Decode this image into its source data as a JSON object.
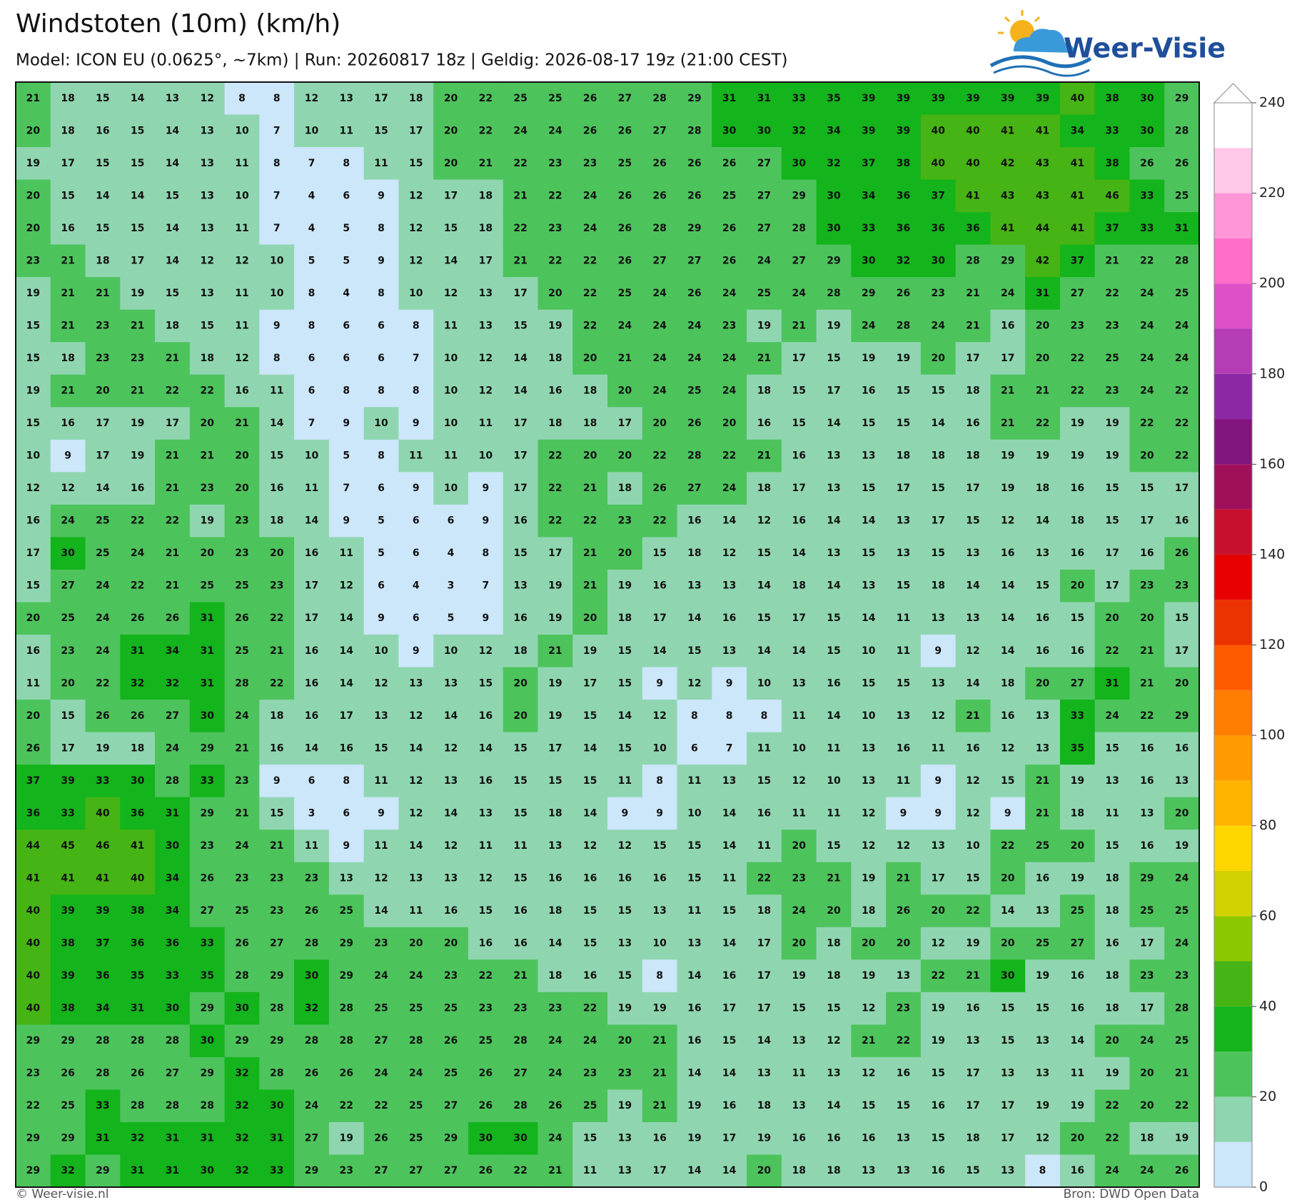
{
  "chart_data": {
    "type": "grid_heatmap",
    "title": "Windstoten (10m) (km/h)",
    "subtitle": "Model: ICON EU (0.0625°, ~7km)  |  Run: 20260817 18z  |  Geldig: 2026-08-17 19z (21:00 CEST)",
    "brand": "Weer-Visie",
    "footer_left": "© Weer-visie.nl",
    "footer_right": "Bron: DWD Open Data",
    "values": [
      [
        21,
        18,
        15,
        14,
        13,
        12,
        8,
        8,
        12,
        13,
        17,
        18,
        20,
        22,
        25,
        25,
        26,
        27,
        28,
        29,
        31,
        31,
        33,
        35,
        39,
        39,
        39,
        39,
        39,
        39,
        40,
        38,
        30,
        29
      ],
      [
        20,
        18,
        16,
        15,
        14,
        13,
        10,
        7,
        10,
        11,
        15,
        17,
        20,
        22,
        24,
        24,
        26,
        26,
        27,
        28,
        30,
        30,
        32,
        34,
        39,
        39,
        40,
        40,
        41,
        41,
        34,
        33,
        30,
        28
      ],
      [
        19,
        17,
        15,
        15,
        14,
        13,
        11,
        8,
        7,
        8,
        11,
        15,
        20,
        21,
        22,
        23,
        23,
        25,
        26,
        26,
        26,
        27,
        30,
        32,
        37,
        38,
        40,
        40,
        42,
        43,
        41,
        38,
        26,
        26
      ],
      [
        20,
        15,
        14,
        14,
        15,
        13,
        10,
        7,
        4,
        6,
        9,
        12,
        17,
        18,
        21,
        22,
        24,
        26,
        26,
        26,
        25,
        27,
        29,
        30,
        34,
        36,
        37,
        41,
        43,
        43,
        41,
        46,
        33,
        25
      ],
      [
        20,
        16,
        15,
        15,
        14,
        13,
        11,
        7,
        4,
        5,
        8,
        12,
        15,
        18,
        22,
        23,
        24,
        26,
        28,
        29,
        26,
        27,
        28,
        30,
        33,
        36,
        36,
        36,
        41,
        44,
        41,
        37,
        33,
        31
      ],
      [
        23,
        21,
        18,
        17,
        14,
        12,
        12,
        10,
        5,
        5,
        9,
        12,
        14,
        17,
        21,
        22,
        22,
        26,
        27,
        27,
        26,
        24,
        27,
        29,
        30,
        32,
        30,
        28,
        29,
        42,
        37,
        21,
        22,
        28
      ],
      [
        19,
        21,
        21,
        19,
        15,
        13,
        11,
        10,
        8,
        4,
        8,
        10,
        12,
        13,
        17,
        20,
        22,
        25,
        24,
        26,
        24,
        25,
        24,
        28,
        29,
        26,
        23,
        21,
        24,
        31,
        27,
        22,
        24,
        25
      ],
      [
        15,
        21,
        23,
        21,
        18,
        15,
        11,
        9,
        8,
        6,
        6,
        8,
        11,
        13,
        15,
        19,
        22,
        24,
        24,
        24,
        23,
        19,
        21,
        19,
        24,
        28,
        24,
        21,
        16,
        20,
        23,
        23,
        24,
        24
      ],
      [
        15,
        18,
        23,
        23,
        21,
        18,
        12,
        8,
        6,
        6,
        6,
        7,
        10,
        12,
        14,
        18,
        20,
        21,
        24,
        24,
        24,
        21,
        17,
        15,
        19,
        19,
        20,
        17,
        17,
        20,
        22,
        25,
        24,
        24
      ],
      [
        19,
        21,
        20,
        21,
        22,
        22,
        16,
        11,
        6,
        8,
        8,
        8,
        10,
        12,
        14,
        16,
        18,
        20,
        24,
        25,
        24,
        18,
        15,
        17,
        16,
        15,
        15,
        18,
        21,
        21,
        22,
        23,
        24,
        22
      ],
      [
        15,
        16,
        17,
        19,
        17,
        20,
        21,
        14,
        7,
        9,
        10,
        9,
        10,
        11,
        17,
        18,
        18,
        17,
        20,
        26,
        20,
        16,
        15,
        14,
        15,
        15,
        14,
        16,
        21,
        22,
        19,
        19,
        22,
        22
      ],
      [
        10,
        9,
        17,
        19,
        21,
        21,
        20,
        15,
        10,
        5,
        8,
        11,
        11,
        10,
        17,
        22,
        20,
        20,
        22,
        28,
        22,
        21,
        16,
        13,
        13,
        18,
        18,
        18,
        19,
        19,
        19,
        19,
        20,
        22
      ],
      [
        12,
        12,
        14,
        16,
        21,
        23,
        20,
        16,
        11,
        7,
        6,
        9,
        10,
        9,
        17,
        22,
        21,
        18,
        26,
        27,
        24,
        18,
        17,
        13,
        15,
        17,
        15,
        17,
        19,
        18,
        16,
        15,
        15,
        17
      ],
      [
        16,
        24,
        25,
        22,
        22,
        19,
        23,
        18,
        14,
        9,
        5,
        6,
        6,
        9,
        16,
        22,
        22,
        23,
        22,
        16,
        14,
        12,
        16,
        14,
        14,
        13,
        17,
        15,
        12,
        14,
        18,
        15,
        17,
        16
      ],
      [
        17,
        30,
        25,
        24,
        21,
        20,
        23,
        20,
        16,
        11,
        5,
        6,
        4,
        8,
        15,
        17,
        21,
        20,
        15,
        18,
        12,
        15,
        14,
        13,
        15,
        13,
        15,
        13,
        16,
        13,
        16,
        17,
        16,
        26
      ],
      [
        15,
        27,
        24,
        22,
        21,
        25,
        25,
        23,
        17,
        12,
        6,
        4,
        3,
        7,
        13,
        19,
        21,
        19,
        16,
        13,
        13,
        14,
        18,
        14,
        13,
        15,
        18,
        14,
        14,
        15,
        20,
        17,
        23,
        23
      ],
      [
        20,
        25,
        24,
        26,
        26,
        31,
        26,
        22,
        17,
        14,
        9,
        6,
        5,
        9,
        16,
        19,
        20,
        18,
        17,
        14,
        16,
        15,
        17,
        15,
        14,
        11,
        13,
        13,
        14,
        16,
        15,
        20,
        20,
        15
      ],
      [
        16,
        23,
        24,
        31,
        34,
        31,
        25,
        21,
        16,
        14,
        10,
        9,
        10,
        12,
        18,
        21,
        19,
        15,
        14,
        15,
        13,
        14,
        14,
        15,
        10,
        11,
        9,
        12,
        14,
        16,
        16,
        22,
        21,
        17
      ],
      [
        11,
        20,
        22,
        32,
        32,
        31,
        28,
        22,
        16,
        14,
        12,
        13,
        13,
        15,
        20,
        19,
        17,
        15,
        9,
        12,
        9,
        10,
        13,
        16,
        15,
        15,
        13,
        14,
        18,
        20,
        27,
        31,
        21,
        20
      ],
      [
        20,
        15,
        26,
        26,
        27,
        30,
        24,
        18,
        16,
        17,
        13,
        12,
        14,
        16,
        20,
        19,
        15,
        14,
        12,
        8,
        8,
        8,
        11,
        14,
        10,
        13,
        12,
        21,
        16,
        13,
        33,
        24,
        22,
        29
      ],
      [
        26,
        17,
        19,
        18,
        24,
        29,
        21,
        16,
        14,
        16,
        15,
        14,
        12,
        14,
        15,
        17,
        14,
        15,
        10,
        6,
        7,
        11,
        10,
        11,
        13,
        16,
        11,
        16,
        12,
        13,
        35,
        15,
        16,
        16
      ],
      [
        37,
        39,
        33,
        30,
        28,
        33,
        23,
        9,
        6,
        8,
        11,
        12,
        13,
        16,
        15,
        15,
        15,
        11,
        8,
        11,
        13,
        15,
        12,
        10,
        13,
        11,
        9,
        12,
        15,
        21,
        19,
        13,
        16,
        13
      ],
      [
        36,
        33,
        40,
        36,
        31,
        29,
        21,
        15,
        3,
        6,
        9,
        12,
        14,
        13,
        15,
        18,
        14,
        9,
        9,
        10,
        14,
        16,
        11,
        11,
        12,
        9,
        9,
        12,
        9,
        21,
        18,
        11,
        13,
        20
      ],
      [
        44,
        45,
        46,
        41,
        30,
        23,
        24,
        21,
        11,
        9,
        11,
        14,
        12,
        11,
        11,
        13,
        12,
        12,
        15,
        15,
        14,
        11,
        20,
        15,
        12,
        12,
        13,
        10,
        22,
        25,
        20,
        15,
        16,
        19
      ],
      [
        41,
        41,
        41,
        40,
        34,
        26,
        23,
        23,
        23,
        13,
        12,
        13,
        13,
        12,
        15,
        16,
        16,
        16,
        16,
        15,
        11,
        22,
        23,
        21,
        19,
        21,
        17,
        15,
        20,
        16,
        19,
        18,
        29,
        24
      ],
      [
        40,
        39,
        39,
        38,
        34,
        27,
        25,
        23,
        26,
        25,
        14,
        11,
        16,
        15,
        16,
        18,
        15,
        15,
        13,
        11,
        15,
        18,
        24,
        20,
        18,
        26,
        20,
        22,
        14,
        13,
        25,
        18,
        25,
        25
      ],
      [
        40,
        38,
        37,
        36,
        36,
        33,
        26,
        27,
        28,
        29,
        23,
        20,
        20,
        16,
        16,
        14,
        15,
        13,
        10,
        13,
        14,
        17,
        20,
        18,
        20,
        20,
        12,
        19,
        20,
        25,
        27,
        16,
        17,
        24
      ],
      [
        40,
        39,
        36,
        35,
        33,
        35,
        28,
        29,
        30,
        29,
        24,
        24,
        23,
        22,
        21,
        18,
        16,
        15,
        8,
        14,
        16,
        17,
        19,
        18,
        19,
        13,
        22,
        21,
        30,
        19,
        16,
        18,
        23,
        23
      ],
      [
        40,
        38,
        34,
        31,
        30,
        29,
        30,
        28,
        32,
        28,
        25,
        25,
        25,
        23,
        23,
        23,
        22,
        19,
        19,
        16,
        17,
        17,
        15,
        15,
        12,
        23,
        19,
        16,
        15,
        15,
        16,
        18,
        17,
        28
      ],
      [
        29,
        29,
        28,
        28,
        28,
        30,
        29,
        29,
        28,
        28,
        27,
        28,
        26,
        25,
        28,
        24,
        24,
        20,
        21,
        16,
        15,
        14,
        13,
        12,
        21,
        22,
        19,
        13,
        15,
        13,
        14,
        20,
        24,
        25
      ],
      [
        23,
        26,
        28,
        26,
        27,
        29,
        32,
        28,
        26,
        26,
        24,
        24,
        25,
        26,
        27,
        24,
        23,
        23,
        21,
        14,
        14,
        13,
        11,
        13,
        12,
        16,
        15,
        17,
        13,
        13,
        11,
        19,
        20,
        21
      ],
      [
        22,
        25,
        33,
        28,
        28,
        28,
        32,
        30,
        24,
        22,
        22,
        25,
        27,
        26,
        28,
        26,
        25,
        19,
        21,
        19,
        16,
        18,
        13,
        14,
        15,
        15,
        16,
        17,
        17,
        19,
        19,
        22,
        20,
        22
      ],
      [
        29,
        29,
        31,
        32,
        31,
        31,
        32,
        31,
        27,
        19,
        26,
        25,
        29,
        30,
        30,
        24,
        15,
        13,
        16,
        19,
        17,
        19,
        16,
        16,
        16,
        13,
        15,
        18,
        17,
        12,
        20,
        22,
        18,
        19
      ],
      [
        29,
        32,
        29,
        31,
        31,
        30,
        32,
        33,
        29,
        23,
        27,
        27,
        27,
        26,
        22,
        21,
        11,
        13,
        17,
        14,
        14,
        20,
        18,
        18,
        13,
        13,
        16,
        15,
        13,
        8,
        16,
        24,
        24,
        26
      ]
    ],
    "colorbar": {
      "lim": [
        0,
        240
      ],
      "ticks": [
        0,
        20,
        40,
        60,
        80,
        100,
        120,
        140,
        160,
        180,
        200,
        220,
        240
      ],
      "bounds": [
        0,
        10,
        20,
        30,
        40,
        50,
        60,
        70,
        80,
        90,
        100,
        110,
        120,
        130,
        140,
        150,
        160,
        170,
        180,
        190,
        200,
        210,
        220,
        230,
        240
      ],
      "colors": [
        "#cce6fa",
        "#8fd6b0",
        "#4dc35c",
        "#14b41c",
        "#46b414",
        "#8cc800",
        "#d2d200",
        "#ffd700",
        "#ffb400",
        "#ff9b00",
        "#ff7d00",
        "#ff5a00",
        "#eb3200",
        "#e60000",
        "#c8102d",
        "#a0105a",
        "#82147d",
        "#8c28a5",
        "#b43cb4",
        "#dc50c8",
        "#ff6ec8",
        "#ff96d7",
        "#ffc8e8",
        "#ffffff"
      ]
    }
  }
}
